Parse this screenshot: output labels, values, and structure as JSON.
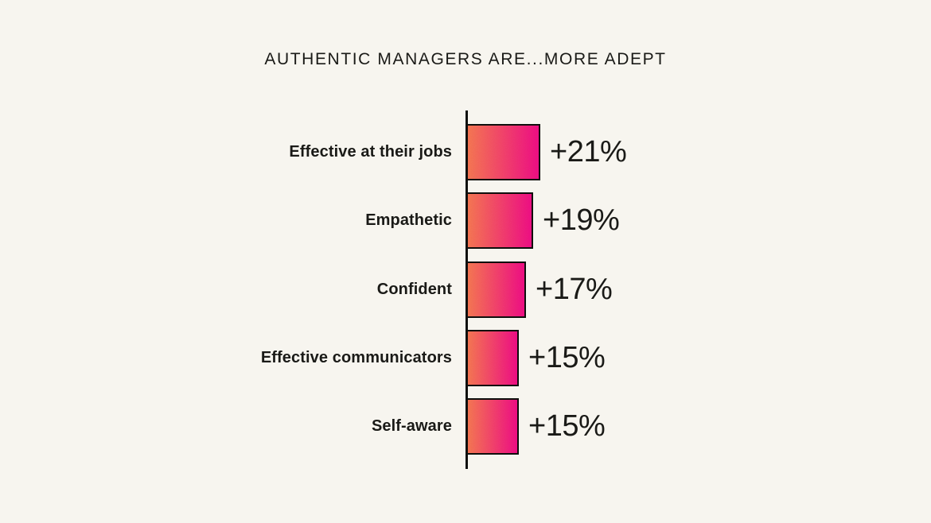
{
  "chart_data": {
    "type": "bar",
    "orientation": "horizontal",
    "title": "AUTHENTIC MANAGERS ARE...MORE ADEPT",
    "categories": [
      "Effective at their jobs",
      "Empathetic",
      "Confident",
      "Effective communicators",
      "Self-aware"
    ],
    "values": [
      21,
      19,
      17,
      15,
      15
    ],
    "value_labels": [
      "+21%",
      "+19%",
      "+17%",
      "+15%",
      "+15%"
    ],
    "unit": "percent",
    "xlim": [
      0,
      21
    ],
    "grid": false,
    "legend": false,
    "colors": {
      "background": "#F7F5EF",
      "text": "#1A1A17",
      "axis": "#0F0F0D",
      "bar_border": "#0F0F0D",
      "bar_gradient_start": "#F3714F",
      "bar_gradient_end": "#EC0D7E"
    }
  }
}
